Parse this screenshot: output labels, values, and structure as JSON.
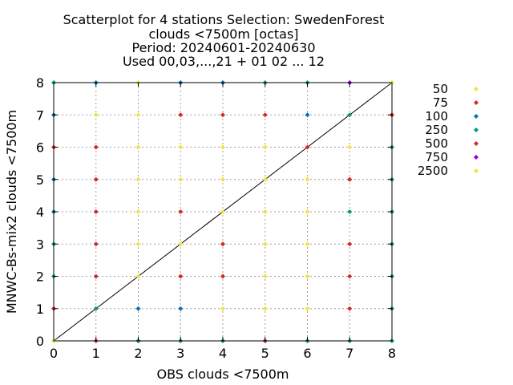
{
  "chart_data": {
    "type": "scatter",
    "title_lines": [
      "Scatterplot for    4 stations Selection: SwedenForest",
      "clouds <7500m [octas]",
      "Period: 20240601-20240630",
      "Used 00,03,...,21 + 01 02 ... 12"
    ],
    "xlabel": "OBS clouds <7500m",
    "ylabel": "MNWC-Bs-mix2 clouds <7500m",
    "xlim": [
      0,
      8
    ],
    "ylim": [
      0,
      8
    ],
    "xticks": [
      "0",
      "1",
      "2",
      "3",
      "4",
      "5",
      "6",
      "7",
      "8"
    ],
    "yticks": [
      "0",
      "1",
      "2",
      "3",
      "4",
      "5",
      "6",
      "7",
      "8"
    ],
    "grid": true,
    "legend_position": "right",
    "diagonal": true,
    "series": [
      {
        "name": "50",
        "color": "#f0e442",
        "points": [
          [
            0,
            0
          ],
          [
            1,
            7
          ],
          [
            2,
            1
          ],
          [
            2,
            2
          ],
          [
            2,
            3
          ],
          [
            2,
            4
          ],
          [
            2,
            5
          ],
          [
            2,
            6
          ],
          [
            2,
            7
          ],
          [
            2,
            8
          ],
          [
            3,
            3
          ],
          [
            3,
            5
          ],
          [
            3,
            6
          ],
          [
            4,
            1
          ],
          [
            4,
            4
          ],
          [
            4,
            5
          ],
          [
            4,
            6
          ],
          [
            5,
            1
          ],
          [
            5,
            2
          ],
          [
            5,
            3
          ],
          [
            5,
            4
          ],
          [
            5,
            5
          ],
          [
            5,
            6
          ],
          [
            6,
            1
          ],
          [
            6,
            2
          ],
          [
            6,
            3
          ],
          [
            6,
            4
          ],
          [
            6,
            5
          ],
          [
            7,
            6
          ],
          [
            8,
            8
          ]
        ]
      },
      {
        "name": "75",
        "color": "#d62728",
        "points": [
          [
            0,
            1
          ],
          [
            0,
            6
          ],
          [
            1,
            0
          ],
          [
            1,
            2
          ],
          [
            1,
            3
          ],
          [
            1,
            4
          ],
          [
            1,
            5
          ],
          [
            1,
            6
          ],
          [
            2,
            0
          ],
          [
            3,
            2
          ],
          [
            3,
            4
          ],
          [
            3,
            7
          ],
          [
            4,
            2
          ],
          [
            4,
            3
          ],
          [
            4,
            7
          ],
          [
            5,
            7
          ],
          [
            6,
            6
          ],
          [
            7,
            1
          ],
          [
            7,
            2
          ],
          [
            7,
            3
          ],
          [
            7,
            5
          ],
          [
            8,
            7
          ]
        ]
      },
      {
        "name": "100",
        "color": "#0072b2",
        "points": [
          [
            0,
            4
          ],
          [
            0,
            5
          ],
          [
            0,
            7
          ],
          [
            1,
            8
          ],
          [
            2,
            1
          ],
          [
            3,
            1
          ],
          [
            3,
            8
          ],
          [
            4,
            8
          ],
          [
            6,
            7
          ]
        ]
      },
      {
        "name": "250",
        "color": "#009e73",
        "points": [
          [
            0,
            2
          ],
          [
            0,
            3
          ],
          [
            0,
            8
          ],
          [
            1,
            1
          ],
          [
            2,
            0
          ],
          [
            3,
            0
          ],
          [
            4,
            0
          ],
          [
            5,
            0
          ],
          [
            5,
            8
          ],
          [
            6,
            0
          ],
          [
            6,
            8
          ],
          [
            7,
            0
          ],
          [
            7,
            4
          ],
          [
            7,
            7
          ],
          [
            8,
            0
          ],
          [
            8,
            1
          ],
          [
            8,
            2
          ],
          [
            8,
            3
          ],
          [
            8,
            4
          ],
          [
            8,
            5
          ],
          [
            8,
            6
          ]
        ]
      },
      {
        "name": "500",
        "color": "#d62728",
        "points": [
          [
            5,
            0
          ],
          [
            7,
            5
          ],
          [
            8,
            7
          ]
        ]
      },
      {
        "name": "750",
        "color": "#9400d3",
        "points": [
          [
            7,
            8
          ]
        ]
      },
      {
        "name": "2500",
        "color": "#f0e442",
        "points": [
          [
            4,
            4
          ],
          [
            5,
            5
          ]
        ]
      }
    ]
  }
}
